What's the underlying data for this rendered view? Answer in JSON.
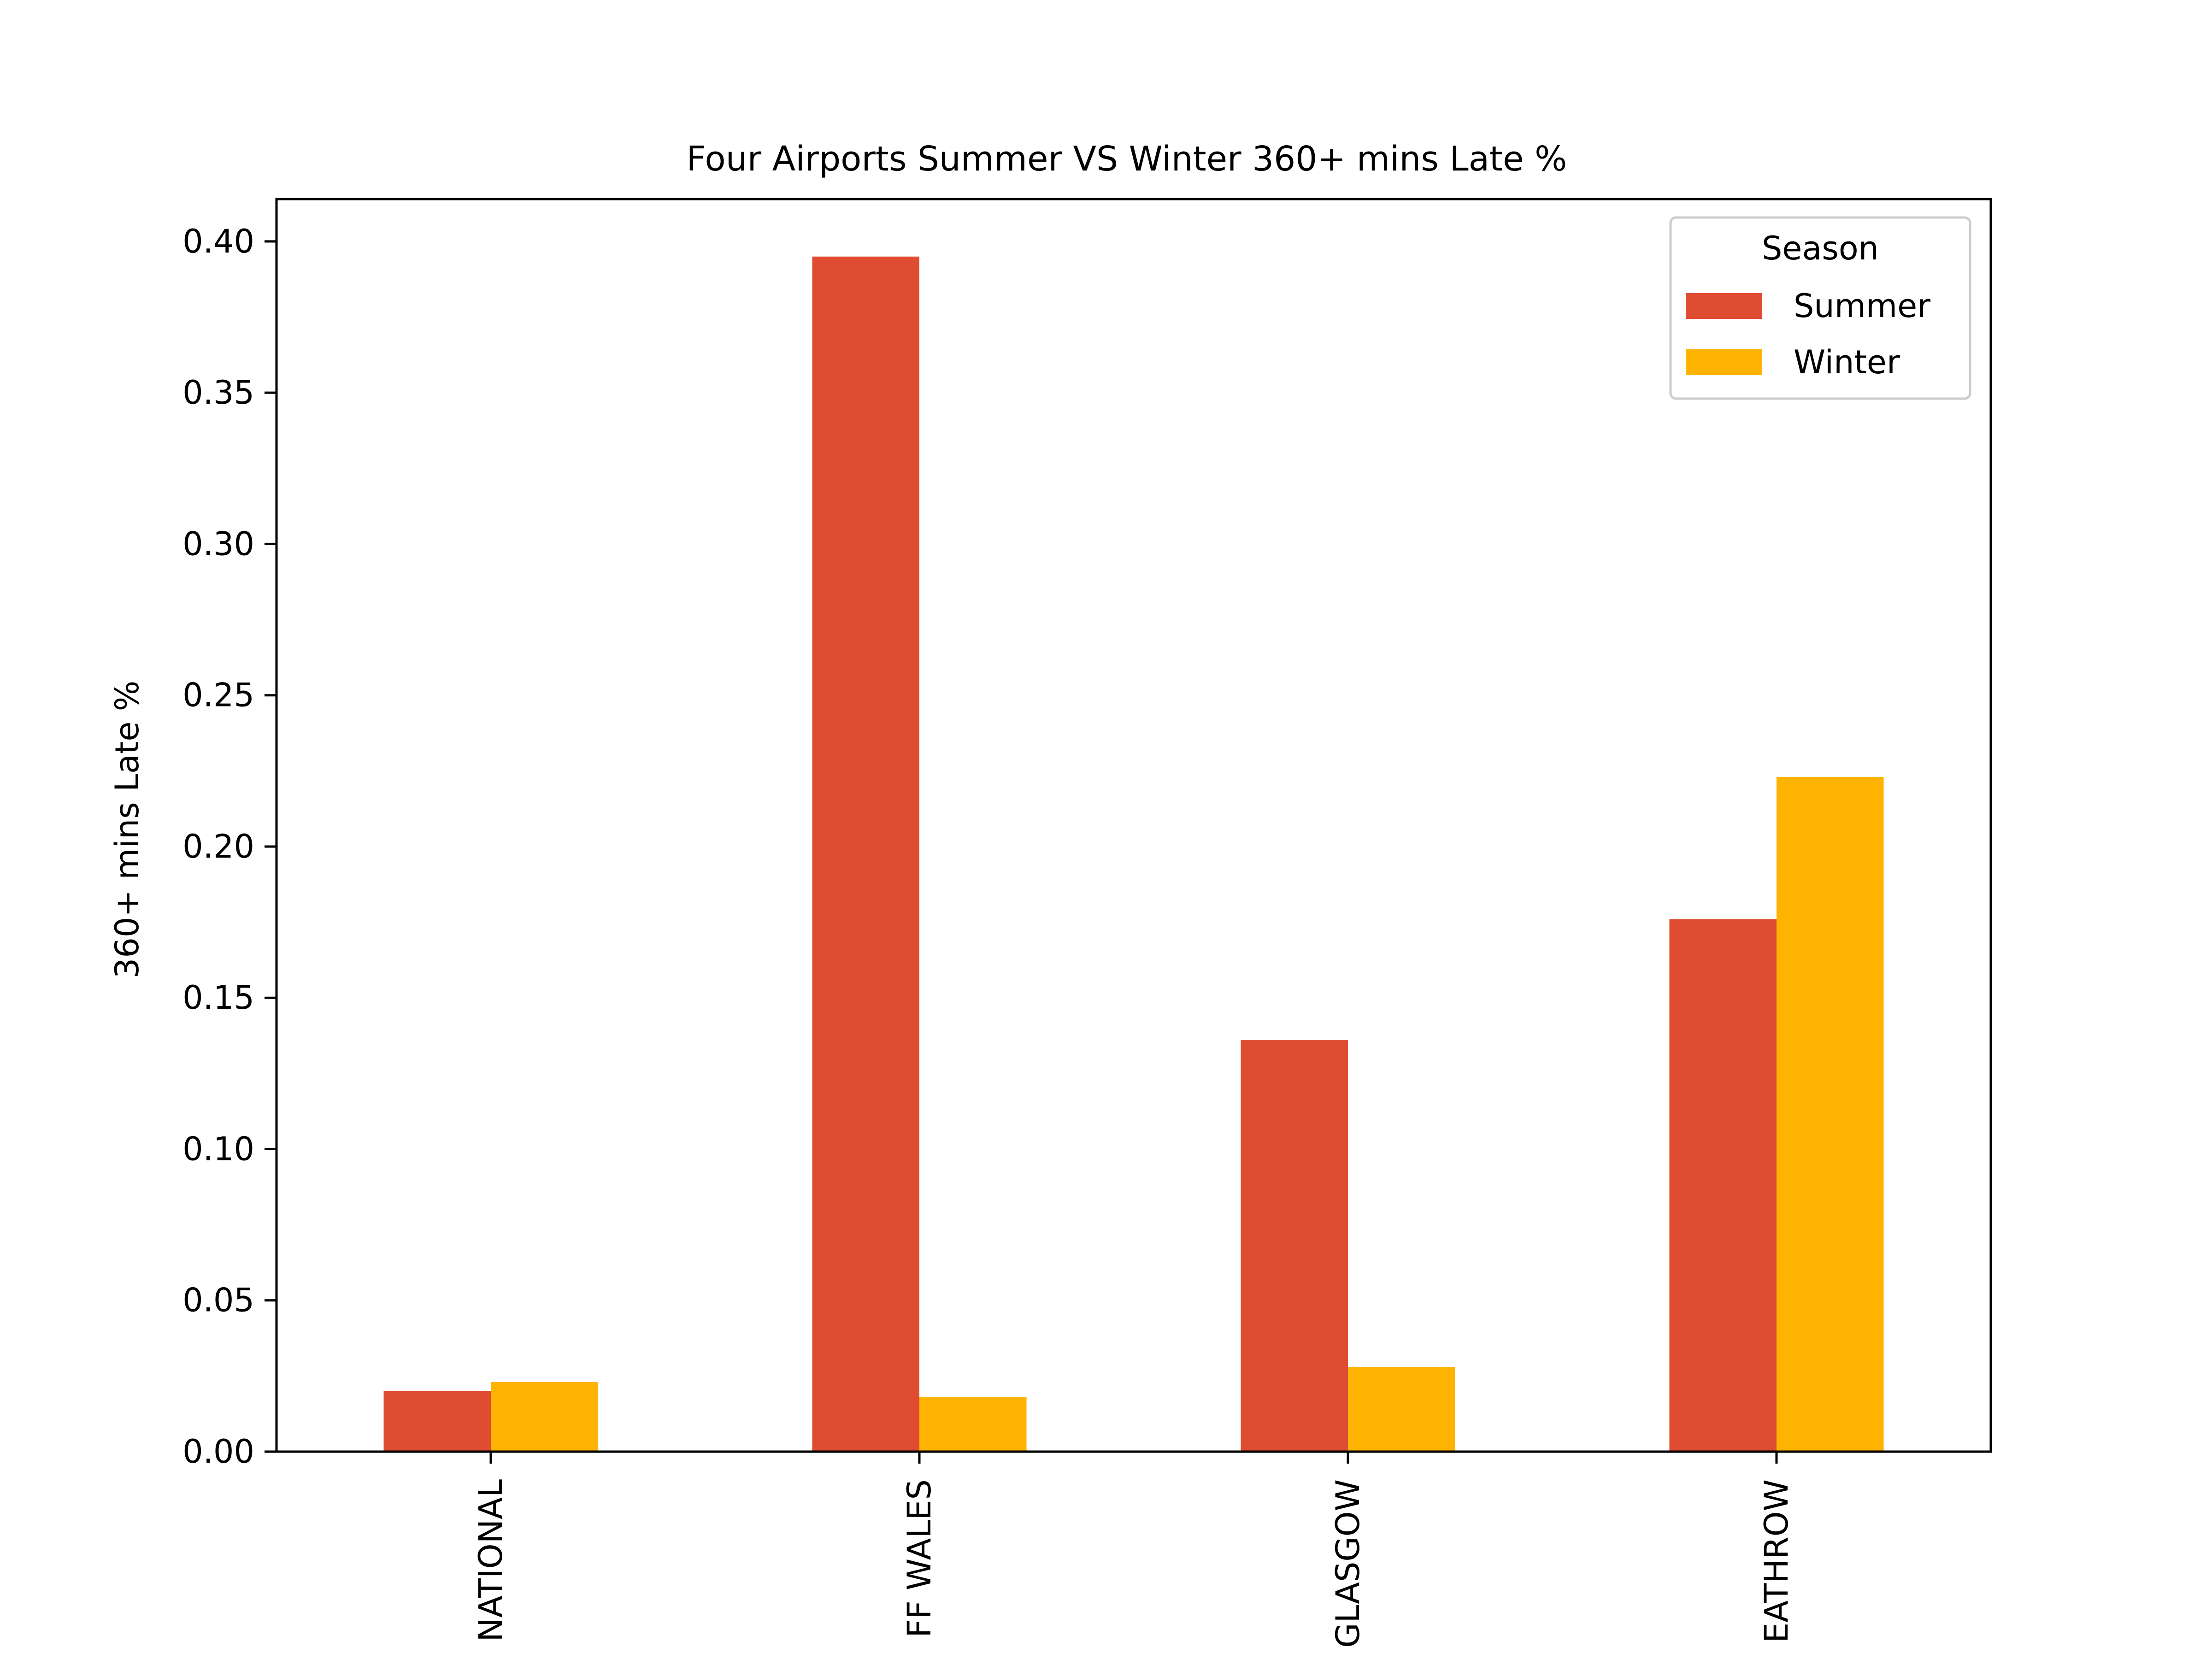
{
  "chart_data": {
    "type": "bar",
    "title": "Four Airports Summer VS Winter 360+ mins Late %",
    "xlabel": "",
    "ylabel": "360+ mins Late %",
    "categories": [
      "NATIONAL",
      "FF WALES",
      "GLASGOW",
      "EATHROW"
    ],
    "series": [
      {
        "name": "Summer",
        "color": "#e04c31",
        "values": [
          0.02,
          0.395,
          0.136,
          0.176
        ]
      },
      {
        "name": "Winter",
        "color": "#fdb300",
        "values": [
          0.023,
          0.018,
          0.028,
          0.223
        ]
      }
    ],
    "ylim": [
      0,
      0.414
    ],
    "yticks": [
      "0.00",
      "0.05",
      "0.10",
      "0.15",
      "0.20",
      "0.25",
      "0.30",
      "0.35",
      "0.40"
    ],
    "grid": false,
    "legend": {
      "title": "Season",
      "placement": "top-right"
    }
  }
}
